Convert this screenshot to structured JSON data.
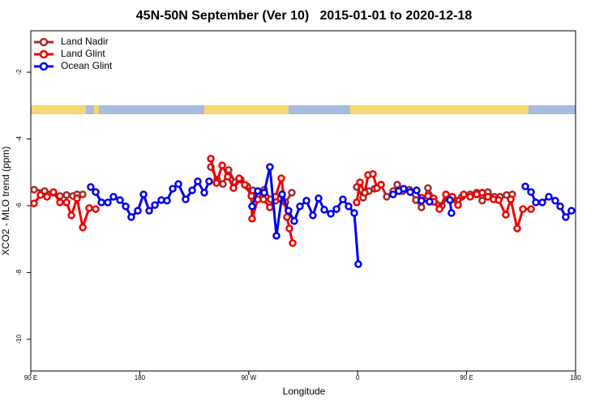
{
  "chart_data": {
    "type": "line",
    "title": "45N-50N September (Ver 10)   2015-01-01 to 2020-12-18",
    "x_label": "Longitude",
    "y_label": "XCO2 - MLO trend (ppm)",
    "xlim": [
      90,
      540
    ],
    "xticks": [
      {
        "value": 90,
        "label": "90 E"
      },
      {
        "value": 180,
        "label": "180"
      },
      {
        "value": 270,
        "label": "90 W"
      },
      {
        "value": 360,
        "label": "0"
      },
      {
        "value": 450,
        "label": "90 E"
      },
      {
        "value": 540,
        "label": "180"
      }
    ],
    "ylim": [
      -10.95,
      -0.76
    ],
    "yticks": [
      -2,
      -4,
      -6,
      -8,
      -10
    ],
    "legend": "top-left",
    "series": [
      {
        "name": "Land Nadir",
        "color": "#a52a2a",
        "x": [
          92.7,
          101.4,
          108.7,
          114.1,
          119.5,
          124.8,
          128.2,
          132.9,
          null,
          238.7,
          244.0,
          248.7,
          253.4,
          258.8,
          263.4,
          268.8,
          273.5,
          277.5,
          282.8,
          288.2,
          292.2,
          300.3,
          305.6,
          null,
          359.2,
          364.5,
          369.2,
          373.9,
          379.3,
          384.0,
          389.3,
          392.7,
          397.3,
          402.7,
          408.1,
          412.7,
          418.1,
          422.8,
          429.5,
          434.2,
          439.5,
          446.2,
          452.9,
          458.3,
          462.9,
          467.6,
          473.0,
          477.7,
          483.0,
          487.7
        ],
        "values": [
          -5.52,
          -5.56,
          -5.61,
          -5.71,
          -5.68,
          -5.71,
          -5.66,
          -5.66,
          null,
          -4.84,
          -5.22,
          -5.35,
          -4.93,
          -5.3,
          -5.22,
          -5.42,
          -5.54,
          -5.66,
          -5.52,
          -5.81,
          -5.85,
          -5.9,
          -5.61,
          null,
          -5.44,
          -5.76,
          -5.56,
          -5.49,
          -5.37,
          -5.73,
          -5.56,
          -5.37,
          -5.56,
          -5.52,
          -5.83,
          -6.05,
          -5.47,
          -5.78,
          -6.0,
          -5.73,
          -5.81,
          -5.73,
          -5.66,
          -5.61,
          -5.85,
          -5.59,
          -5.73,
          -5.73,
          -5.68,
          -5.66
        ]
      },
      {
        "name": "Land Glint",
        "color": "#ee0000",
        "x": [
          92.7,
          98.0,
          103.4,
          108.7,
          114.1,
          119.5,
          123.5,
          128.2,
          132.9,
          138.2,
          143.6,
          null,
          238.7,
          243.4,
          248.1,
          252.7,
          257.4,
          262.1,
          266.8,
          272.2,
          272.8,
          277.5,
          282.2,
          287.5,
          292.2,
          296.9,
          301.6,
          303.6,
          306.3,
          null,
          359.2,
          361.9,
          365.9,
          368.6,
          372.6,
          376.0,
          379.3,
          null,
          412.7,
          418.1,
          422.8,
          427.5,
          432.9,
          438.2,
          442.9,
          447.6,
          452.9,
          458.3,
          462.9,
          467.6,
          472.3,
          476.4,
          482.4,
          486.4,
          491.8,
          496.5,
          503.2
        ],
        "values": [
          -5.93,
          -5.68,
          -5.73,
          -5.59,
          -5.9,
          -5.9,
          -6.29,
          -5.78,
          -6.65,
          -6.07,
          -6.1,
          null,
          -4.59,
          -5.32,
          -4.79,
          -5.13,
          -5.47,
          -5.18,
          -5.37,
          -5.71,
          -6.39,
          -5.81,
          -5.81,
          -6.05,
          -5.73,
          -5.18,
          -6.34,
          -6.68,
          -7.12,
          null,
          -5.9,
          -5.3,
          -5.61,
          -5.08,
          -5.05,
          -5.47,
          -5.37,
          null,
          -5.76,
          -5.71,
          -5.88,
          -6.1,
          -5.66,
          -5.73,
          -5.98,
          -5.66,
          -5.73,
          -5.66,
          -5.61,
          -5.73,
          -5.81,
          -5.83,
          -6.27,
          -5.81,
          -6.68,
          -6.1,
          -6.1
        ]
      },
      {
        "name": "Ocean Glint",
        "color": "#0000ee",
        "x": [
          139.5,
          143.6,
          148.3,
          153.6,
          158.3,
          163.7,
          168.4,
          173.0,
          178.4,
          183.1,
          187.8,
          192.5,
          197.8,
          202.5,
          207.2,
          211.9,
          217.9,
          223.3,
          227.9,
          233.3,
          237.3,
          null,
          272.8,
          277.5,
          282.8,
          287.5,
          292.9,
          297.6,
          302.9,
          307.6,
          312.3,
          317.7,
          323.0,
          327.7,
          332.4,
          337.8,
          342.5,
          347.8,
          352.5,
          357.2,
          360.5,
          null,
          389.3,
          394.0,
          398.0,
          403.4,
          408.7,
          412.7,
          419.4,
          null,
          436.2,
          437.5,
          null,
          498.5,
          503.2,
          507.2,
          512.5,
          517.9,
          523.2,
          527.3,
          531.9,
          536.6
        ],
        "values": [
          -5.44,
          -5.59,
          -5.9,
          -5.9,
          -5.73,
          -5.83,
          -6.02,
          -6.34,
          -6.15,
          -5.66,
          -6.15,
          -5.98,
          -5.83,
          -5.85,
          -5.49,
          -5.35,
          -5.81,
          -5.54,
          -5.27,
          -5.61,
          -5.27,
          null,
          -6.02,
          -5.56,
          -5.61,
          -4.84,
          -6.9,
          -5.66,
          -6.15,
          -6.46,
          -6.02,
          -5.85,
          -6.29,
          -5.78,
          -6.12,
          -6.24,
          -6.1,
          -5.81,
          -6.02,
          -6.22,
          -7.75,
          null,
          -5.66,
          -5.56,
          -5.49,
          -5.59,
          -5.54,
          -5.85,
          -5.88,
          null,
          -5.83,
          -6.22,
          null,
          -5.42,
          -5.59,
          -5.9,
          -5.9,
          -5.73,
          -5.85,
          -6.02,
          -6.34,
          -6.15
        ]
      }
    ]
  }
}
